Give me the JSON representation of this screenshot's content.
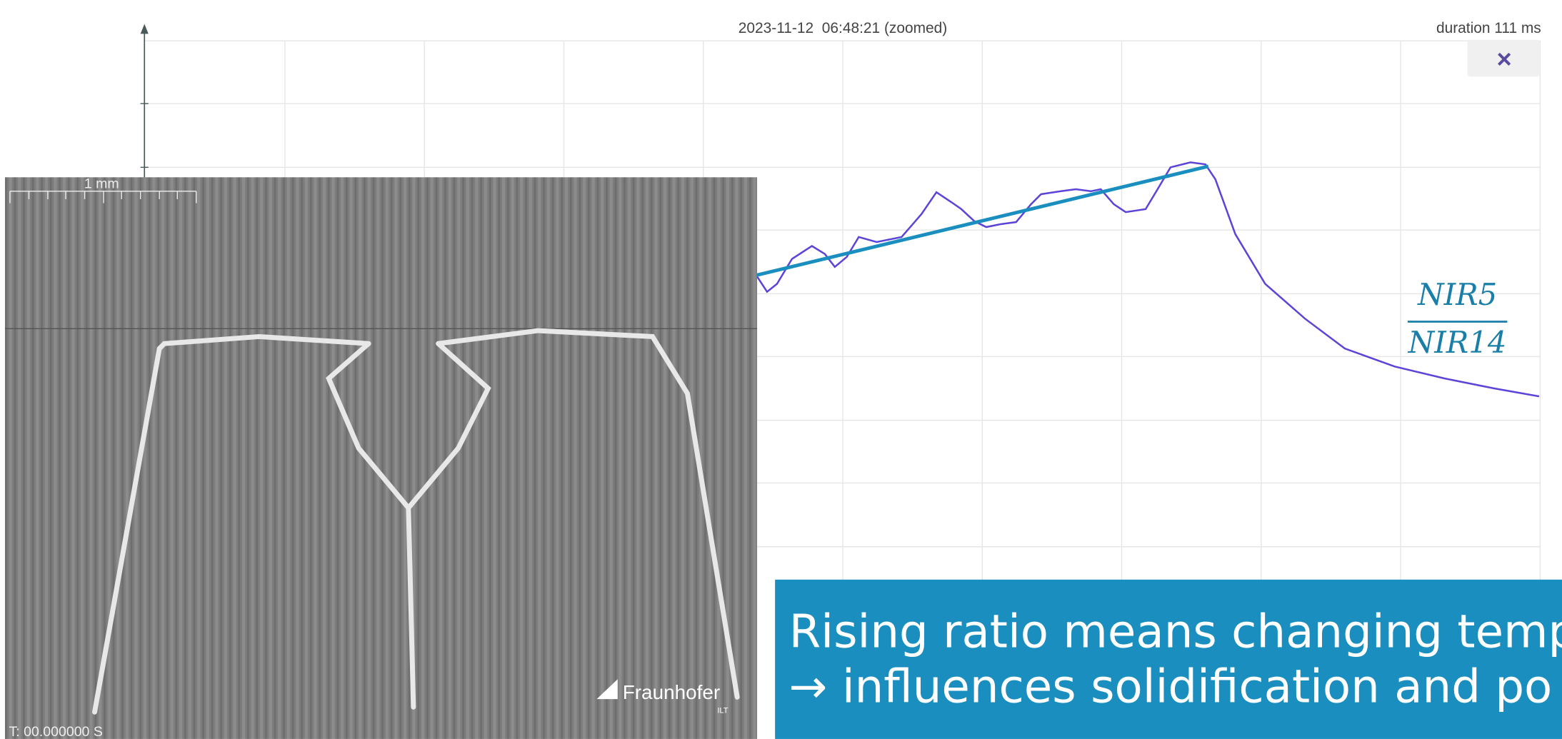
{
  "header": {
    "timestamp": "2023-11-12  06:48:21 (zoomed)",
    "duration": "duration 111 ms",
    "close": "×"
  },
  "formula": {
    "numerator": "NIR5",
    "denominator": "NIR14"
  },
  "image": {
    "scale_label": "1 mm",
    "time_label": "T: 00.000000 S",
    "logo": "Fraunhofer",
    "logo_sub": "ILT"
  },
  "caption": {
    "lines": [
      "Rising ratio means changing temp",
      "→ influences solidification and po"
    ]
  }
}
